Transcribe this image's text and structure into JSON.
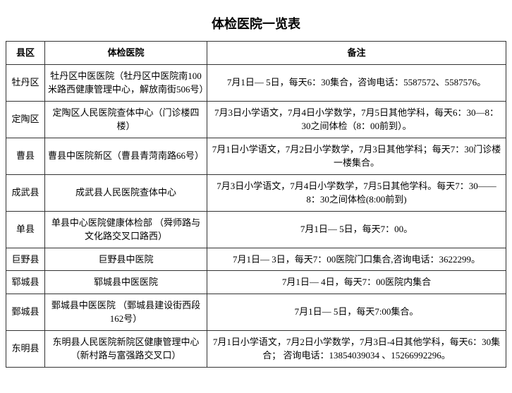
{
  "table": {
    "title": "体检医院一览表",
    "headers": {
      "district": "县区",
      "hospital": "体检医院",
      "notes": "备注"
    },
    "rows": [
      {
        "district": "牡丹区",
        "hospital": "牡丹区中医医院（牡丹区中医院南100米路西健康管理中心，解放南街506号）",
        "notes": "7月1日— 5日，每天6：30集合，咨询电话：5587572、5587576。"
      },
      {
        "district": "定陶区",
        "hospital": "定陶区人民医院查体中心（门诊楼四楼）",
        "notes": "7月3日小学语文，7月4日小学数学，7月5日其他学科，每天6：30—8：30之间体检（8：00前到）。"
      },
      {
        "district": "曹县",
        "hospital": "曹县中医院新区（曹县青菏南路66号）",
        "notes": "7月1日小学语文，7月2日小学数学，7月3日其他学科；每天7：30门诊楼一楼集合。"
      },
      {
        "district": "成武县",
        "hospital": "成武县人民医院查体中心",
        "notes": "7月3日小学语文，7月4日小学数学，7月5日其他学科。每天7：30——8：30之间体检(8:00前到)"
      },
      {
        "district": "单县",
        "hospital": "单县中心医院健康体检部 （舜师路与文化路交叉口路西）",
        "notes": "7月1日— 5日，每天7：00。"
      },
      {
        "district": "巨野县",
        "hospital": "巨野县中医院",
        "notes": "7月1日— 3日，每天7：00医院门口集合,咨询电话：3622299。"
      },
      {
        "district": "郓城县",
        "hospital": "郓城县中医医院",
        "notes": "7月1日— 4日，每天7：00医院内集合"
      },
      {
        "district": "鄄城县",
        "hospital": "鄄城县中医医院 （鄄城县建设街西段162号）",
        "notes": "7月1日— 5日，每天7:00集合。"
      },
      {
        "district": "东明县",
        "hospital": "东明县人民医院新院区健康管理中心（新村路与富强路交叉口）",
        "notes": "7月1日小学语文，7月2日小学数学，7月3日-4日其他学科，每天6：30集合；  咨询电话：13854039034 、15266992296。"
      }
    ]
  },
  "colors": {
    "border": "#333333",
    "text": "#000000",
    "background": "#ffffff"
  }
}
